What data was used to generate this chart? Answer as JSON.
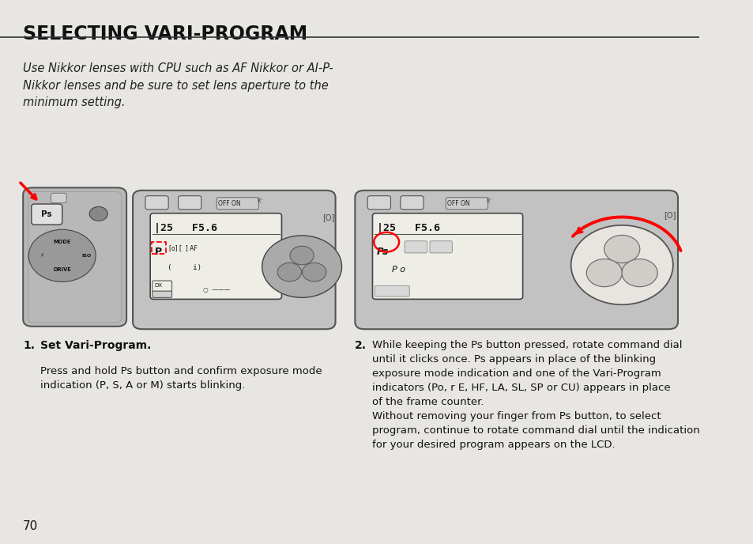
{
  "bg_color": "#e8e6e3",
  "title": "SELECTING VARI-PROGRAM",
  "title_color": "#111111",
  "title_fontsize": 17,
  "italic_text": "Use Nikkor lenses with CPU such as AF Nikkor or AI-P-\nNikkor lenses and be sure to set lens aperture to the\nminimum setting.",
  "italic_fontsize": 10.5,
  "step1_fontsize": 10,
  "step2_fontsize": 10,
  "page_number": "70"
}
